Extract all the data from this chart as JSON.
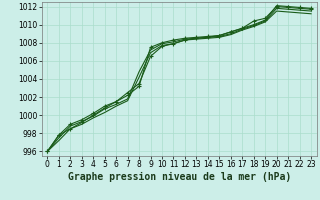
{
  "title": "Graphe pression niveau de la mer (hPa)",
  "background_color": "#cceee8",
  "grid_color": "#aaddcc",
  "line_color": "#1a5c1a",
  "marker_color": "#1a5c1a",
  "xlim": [
    -0.5,
    23.5
  ],
  "ylim": [
    995.5,
    1012.5
  ],
  "xticks": [
    0,
    1,
    2,
    3,
    4,
    5,
    6,
    7,
    8,
    9,
    10,
    11,
    12,
    13,
    14,
    15,
    16,
    17,
    18,
    19,
    20,
    21,
    22,
    23
  ],
  "yticks": [
    996,
    998,
    1000,
    1002,
    1004,
    1006,
    1008,
    1010,
    1012
  ],
  "series": [
    {
      "y": [
        996.0,
        997.8,
        999.0,
        999.5,
        1000.2,
        1001.0,
        1001.5,
        1002.2,
        1003.2,
        1007.5,
        1008.0,
        1008.3,
        1008.5,
        1008.6,
        1008.7,
        1008.8,
        1009.2,
        1009.6,
        1010.0,
        1010.5,
        1012.1,
        1012.0,
        1011.9,
        1011.8
      ],
      "marker": "+"
    },
    {
      "y": [
        996.0,
        997.5,
        998.8,
        999.3,
        999.9,
        1000.7,
        1001.2,
        1001.8,
        1004.8,
        1007.2,
        1007.9,
        1008.1,
        1008.4,
        1008.5,
        1008.6,
        1008.7,
        1009.0,
        1009.5,
        1009.9,
        1010.4,
        1011.8,
        1011.7,
        1011.6,
        1011.5
      ],
      "marker": null
    },
    {
      "y": [
        996.0,
        997.2,
        998.5,
        999.0,
        999.7,
        1000.3,
        1001.0,
        1001.6,
        1004.2,
        1006.9,
        1007.7,
        1007.9,
        1008.3,
        1008.4,
        1008.5,
        1008.6,
        1008.9,
        1009.4,
        1009.8,
        1010.3,
        1011.5,
        1011.4,
        1011.3,
        1011.2
      ],
      "marker": null
    },
    {
      "y": [
        996.0,
        997.8,
        998.5,
        999.2,
        1000.0,
        1000.8,
        1001.5,
        1002.5,
        1003.5,
        1006.5,
        1007.6,
        1007.9,
        1008.3,
        1008.5,
        1008.6,
        1008.8,
        1009.2,
        1009.6,
        1010.4,
        1010.7,
        1012.0,
        1011.9,
        1011.8,
        1011.7
      ],
      "marker": "+"
    }
  ],
  "title_fontsize": 7,
  "tick_fontsize": 5.5,
  "linewidth": 0.8,
  "markersize": 3.0
}
